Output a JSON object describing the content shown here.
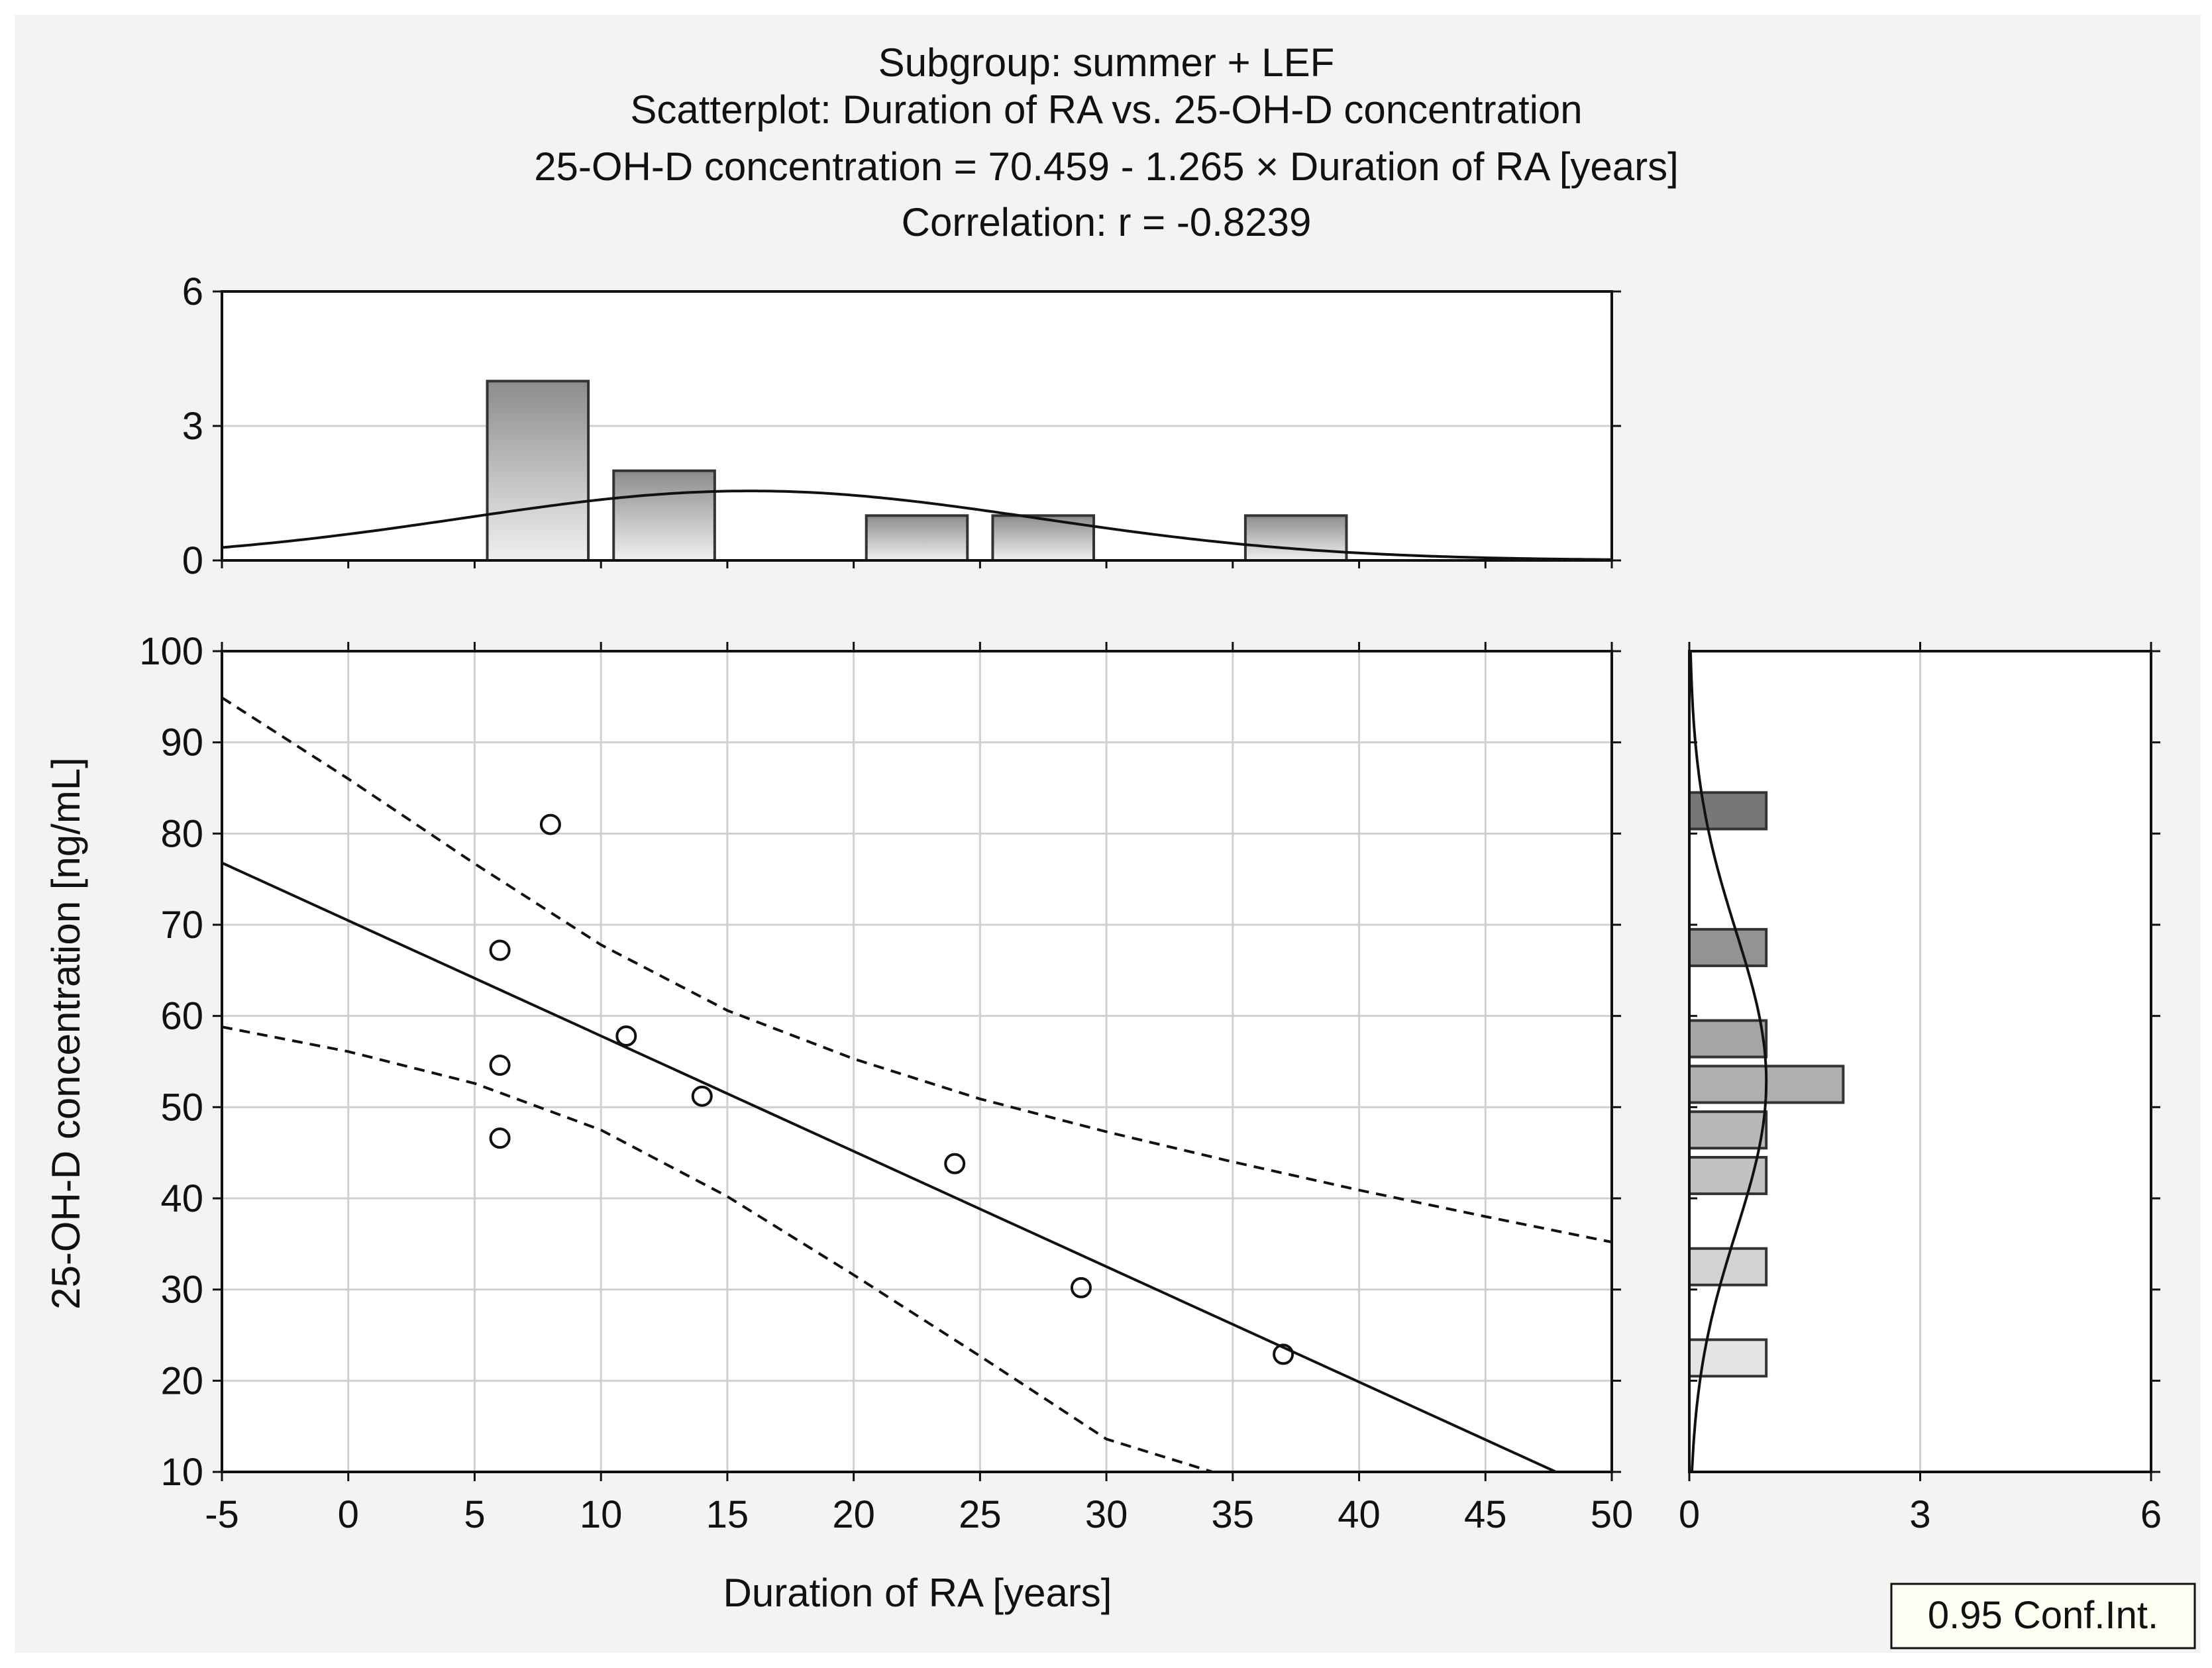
{
  "chart_data": {
    "type": "scatter",
    "title_lines": [
      "Subgroup: summer + LEF",
      "Scatterplot: Duration of RA vs. 25-OH-D concentration",
      "25-OH-D concentration = 70.459 - 1.265 × Duration of RA [years]",
      "Correlation: r = -0.8239"
    ],
    "xlabel": "Duration of RA [years]",
    "ylabel": "25-OH-D concentration [ng/mL]",
    "xlim": [
      -5,
      50
    ],
    "ylim": [
      10,
      100
    ],
    "x_ticks": [
      "-5",
      "0",
      "5",
      "10",
      "15",
      "20",
      "25",
      "30",
      "35",
      "40",
      "45",
      "50"
    ],
    "y_ticks": [
      "10",
      "20",
      "30",
      "40",
      "50",
      "60",
      "70",
      "80",
      "90",
      "100"
    ],
    "points": [
      {
        "x": 6,
        "y": 67.2
      },
      {
        "x": 6,
        "y": 54.6
      },
      {
        "x": 6,
        "y": 46.6
      },
      {
        "x": 8,
        "y": 81.0
      },
      {
        "x": 11,
        "y": 57.8
      },
      {
        "x": 14,
        "y": 51.2
      },
      {
        "x": 24,
        "y": 43.8
      },
      {
        "x": 29,
        "y": 30.2
      },
      {
        "x": 37,
        "y": 22.9
      }
    ],
    "regression": {
      "intercept": 70.459,
      "slope": -1.265
    },
    "ci_upper": [
      [
        -5,
        94.9
      ],
      [
        0,
        86.0
      ],
      [
        5,
        76.7
      ],
      [
        10,
        67.8
      ],
      [
        15,
        60.6
      ],
      [
        20,
        55.3
      ],
      [
        25,
        50.9
      ],
      [
        30,
        47.3
      ],
      [
        35,
        44.0
      ],
      [
        40,
        40.9
      ],
      [
        45,
        38.0
      ],
      [
        50,
        35.2
      ]
    ],
    "ci_lower": [
      [
        -5,
        58.8
      ],
      [
        0,
        56.1
      ],
      [
        5,
        52.6
      ],
      [
        10,
        47.5
      ],
      [
        15,
        40.2
      ],
      [
        20,
        31.6
      ],
      [
        25,
        22.7
      ],
      [
        30,
        13.6
      ],
      [
        34.2,
        10.0
      ]
    ],
    "top_hist": {
      "ylim": [
        0,
        6
      ],
      "y_ticks": [
        "0",
        "3",
        "6"
      ],
      "bins": [
        {
          "from": 5.5,
          "to": 9.5,
          "count": 4
        },
        {
          "from": 10.5,
          "to": 14.5,
          "count": 2
        },
        {
          "from": 20.5,
          "to": 24.5,
          "count": 1
        },
        {
          "from": 25.5,
          "to": 29.5,
          "count": 1
        },
        {
          "from": 35.5,
          "to": 39.5,
          "count": 1
        }
      ],
      "normal_curve": {
        "mean": 15.9,
        "sd": 11.4,
        "scale": 1.55
      }
    },
    "right_hist": {
      "xlim": [
        0,
        6
      ],
      "x_ticks": [
        "0",
        "3",
        "6"
      ],
      "bins": [
        {
          "from": 80.5,
          "to": 84.5,
          "count": 1
        },
        {
          "from": 65.5,
          "to": 69.5,
          "count": 1
        },
        {
          "from": 55.5,
          "to": 59.5,
          "count": 1
        },
        {
          "from": 50.5,
          "to": 54.5,
          "count": 2
        },
        {
          "from": 45.5,
          "to": 49.5,
          "count": 1
        },
        {
          "from": 40.5,
          "to": 44.5,
          "count": 1
        },
        {
          "from": 30.5,
          "to": 34.5,
          "count": 1
        },
        {
          "from": 20.5,
          "to": 24.5,
          "count": 1
        }
      ],
      "normal_curve": {
        "mean": 52.8,
        "sd": 16.5,
        "scale": 1.0
      }
    },
    "legend": "0.95 Conf.Int.",
    "grid": true
  }
}
